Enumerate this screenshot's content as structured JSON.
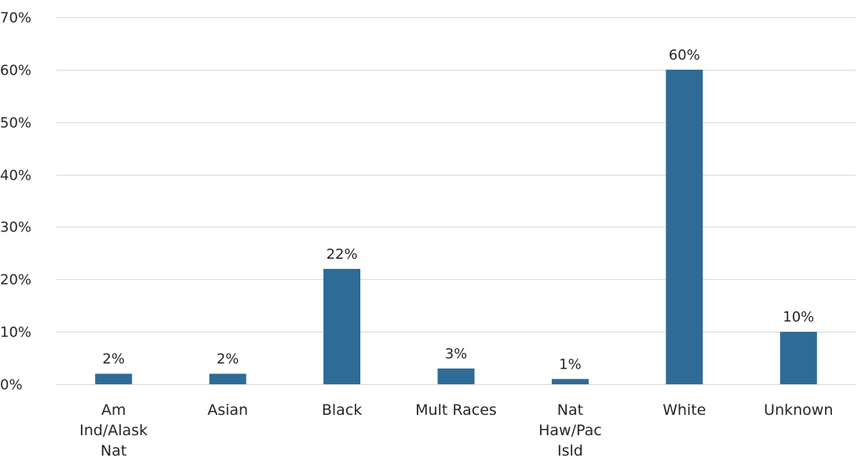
{
  "chart_data": {
    "type": "bar",
    "title": "",
    "xlabel": "",
    "ylabel": "",
    "ylim": [
      0,
      70
    ],
    "y_ticks": [
      0,
      10,
      20,
      30,
      40,
      50,
      60,
      70
    ],
    "y_tick_labels": [
      "0%",
      "10%",
      "20%",
      "30%",
      "40%",
      "50%",
      "60%",
      "70%"
    ],
    "grid": true,
    "legend": "none",
    "categories": [
      [
        "Am",
        "Ind/Alask",
        "Nat"
      ],
      [
        "Asian"
      ],
      [
        "Black"
      ],
      [
        "Mult Races"
      ],
      [
        "Nat",
        "Haw/Pac",
        "Isld"
      ],
      [
        "White"
      ],
      [
        "Unknown"
      ]
    ],
    "values": [
      2,
      2,
      22,
      3,
      1,
      60,
      10
    ],
    "data_labels": [
      "2%",
      "2%",
      "22%",
      "3%",
      "1%",
      "60%",
      "10%"
    ],
    "colors": {
      "bar": "#2e6b96",
      "grid": "#d9d9d9",
      "text": "#262626"
    }
  }
}
